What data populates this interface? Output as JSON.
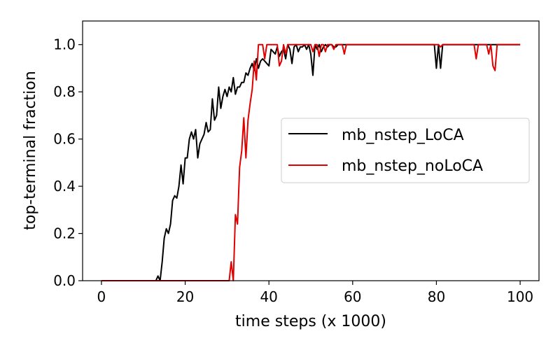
{
  "chart_data": {
    "type": "line",
    "title": "",
    "xlabel": "time steps (x 1000)",
    "ylabel": "top-terminal fraction",
    "xlim": [
      -4.5,
      104.5
    ],
    "ylim": [
      0.0,
      1.1
    ],
    "xticks": [
      0,
      20,
      40,
      60,
      80,
      100
    ],
    "yticks": [
      0.0,
      0.2,
      0.4,
      0.6,
      0.8,
      1.0
    ],
    "xtick_labels": [
      "0",
      "20",
      "40",
      "60",
      "80",
      "100"
    ],
    "ytick_labels": [
      "0.0",
      "0.2",
      "0.4",
      "0.6",
      "0.8",
      "1.0"
    ],
    "grid": false,
    "legend_position": "right",
    "series": [
      {
        "name": "mb_nstep_LoCA",
        "color": "#000000",
        "x": [
          0,
          13,
          13.5,
          14,
          14.5,
          15,
          15.5,
          16,
          16.5,
          17,
          17.5,
          18,
          18.5,
          19,
          19.5,
          20,
          20.5,
          21,
          21.5,
          22,
          22.5,
          23,
          23.5,
          24,
          24.5,
          25,
          25.5,
          26,
          26.5,
          27,
          27.5,
          28,
          28.5,
          29,
          29.5,
          30,
          30.5,
          31,
          31.5,
          32,
          32.5,
          33,
          33.5,
          34,
          34.5,
          35,
          35.5,
          36,
          36.5,
          37,
          37.5,
          38,
          38.5,
          39,
          39.5,
          40,
          40.5,
          41,
          41.5,
          42,
          42.5,
          43,
          43.5,
          44,
          44.5,
          45,
          45.5,
          46,
          46.5,
          47,
          47.5,
          48,
          48.5,
          49,
          49.5,
          50,
          50.5,
          51,
          51.5,
          52,
          52.5,
          53,
          53.5,
          54,
          54.5,
          55,
          55.5,
          56,
          56.5,
          57,
          57.5,
          58,
          58.5,
          59,
          59.5,
          60,
          79.5,
          80,
          80.5,
          81,
          81.5,
          100
        ],
        "y": [
          0.0,
          0.0,
          0.02,
          0.0,
          0.08,
          0.18,
          0.22,
          0.2,
          0.24,
          0.34,
          0.36,
          0.35,
          0.4,
          0.49,
          0.41,
          0.52,
          0.52,
          0.6,
          0.63,
          0.6,
          0.64,
          0.52,
          0.58,
          0.6,
          0.62,
          0.67,
          0.63,
          0.64,
          0.77,
          0.68,
          0.7,
          0.82,
          0.73,
          0.78,
          0.81,
          0.78,
          0.82,
          0.8,
          0.86,
          0.79,
          0.82,
          0.82,
          0.84,
          0.84,
          0.88,
          0.87,
          0.9,
          0.92,
          0.89,
          0.94,
          0.9,
          0.93,
          0.94,
          0.93,
          0.92,
          0.91,
          0.98,
          0.97,
          0.96,
          0.99,
          0.95,
          0.97,
          0.98,
          0.94,
          1.0,
          0.98,
          0.92,
          0.99,
          1.0,
          0.97,
          0.99,
          0.99,
          1.0,
          0.98,
          1.0,
          0.96,
          0.87,
          1.0,
          0.98,
          1.0,
          0.97,
          0.99,
          1.0,
          0.99,
          1.0,
          1.0,
          0.99,
          0.99,
          1.0,
          1.0,
          1.0,
          1.0,
          1.0,
          1.0,
          1.0,
          1.0,
          1.0,
          0.9,
          1.0,
          0.9,
          1.0,
          1.0
        ]
      },
      {
        "name": "mb_nstep_noLoCA",
        "color": "#e00000",
        "x": [
          0,
          30,
          30.5,
          31,
          31.5,
          32,
          32.5,
          33,
          33.5,
          34,
          34.5,
          35,
          35.5,
          36,
          36.5,
          37,
          37.5,
          38,
          38.5,
          39,
          39.5,
          40,
          40.5,
          41,
          41.5,
          42,
          42.5,
          43,
          43.5,
          44,
          44.5,
          45,
          45.5,
          46,
          46.5,
          47,
          47.5,
          48,
          48.5,
          49,
          49.5,
          50,
          50.5,
          51,
          51.5,
          52,
          52.5,
          53,
          53.5,
          54,
          54.5,
          55,
          55.5,
          56,
          56.5,
          57,
          57.5,
          58,
          58.5,
          59,
          59.5,
          60,
          80,
          80.5,
          81,
          81.5,
          89,
          89.5,
          90,
          92,
          92.5,
          93,
          93.5,
          94,
          94.5,
          95,
          100
        ],
        "y": [
          0.0,
          0.0,
          0.0,
          0.08,
          0.0,
          0.28,
          0.24,
          0.48,
          0.55,
          0.69,
          0.52,
          0.68,
          0.75,
          0.81,
          0.93,
          0.85,
          1.0,
          1.0,
          1.0,
          0.94,
          1.0,
          1.0,
          1.0,
          1.0,
          1.0,
          1.0,
          0.91,
          0.93,
          1.0,
          0.96,
          1.0,
          1.0,
          1.0,
          1.0,
          1.0,
          1.0,
          1.0,
          1.0,
          1.0,
          1.0,
          1.0,
          1.0,
          0.97,
          1.0,
          1.0,
          0.95,
          1.0,
          1.0,
          0.97,
          1.0,
          1.0,
          1.0,
          0.98,
          1.0,
          1.0,
          1.0,
          1.0,
          0.96,
          1.0,
          1.0,
          1.0,
          1.0,
          1.0,
          1.0,
          0.99,
          1.0,
          1.0,
          0.94,
          1.0,
          1.0,
          0.96,
          1.0,
          0.91,
          0.89,
          1.0,
          1.0,
          1.0
        ]
      }
    ]
  }
}
